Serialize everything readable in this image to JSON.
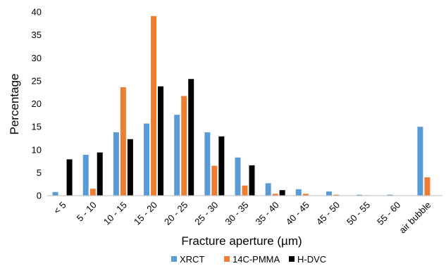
{
  "chart_data": {
    "type": "bar",
    "title": "",
    "xlabel": "Fracture aperture (µm)",
    "ylabel": "Percentage",
    "ylim": [
      0,
      40
    ],
    "y_ticks": [
      0,
      5,
      10,
      15,
      20,
      25,
      30,
      35,
      40
    ],
    "grid": false,
    "legend_position": "bottom",
    "categories": [
      "< 5",
      "5 - 10",
      "10 - 15",
      "15 - 20",
      "20 - 25",
      "25 - 30",
      "30 - 35",
      "35 - 40",
      "40 - 45",
      "45 - 50",
      "50 - 55",
      "55 - 60",
      "air bubble"
    ],
    "series": [
      {
        "name": "XRCT",
        "color": "#5B9BD5",
        "values": [
          0.8,
          8.9,
          13.8,
          15.7,
          17.6,
          13.8,
          8.3,
          2.7,
          1.4,
          0.9,
          0.2,
          0.2,
          15.0
        ]
      },
      {
        "name": "14C-PMMA",
        "color": "#ED7D31",
        "values": [
          0.0,
          1.5,
          23.6,
          39.1,
          21.7,
          6.5,
          2.2,
          0.4,
          0.4,
          0.2,
          0.1,
          0.0,
          4.0
        ]
      },
      {
        "name": "H-DVC",
        "color": "#000000",
        "values": [
          7.9,
          9.4,
          12.3,
          23.8,
          25.4,
          12.9,
          6.6,
          1.2,
          0.0,
          0.0,
          0.0,
          0.0,
          0.0
        ]
      }
    ]
  }
}
